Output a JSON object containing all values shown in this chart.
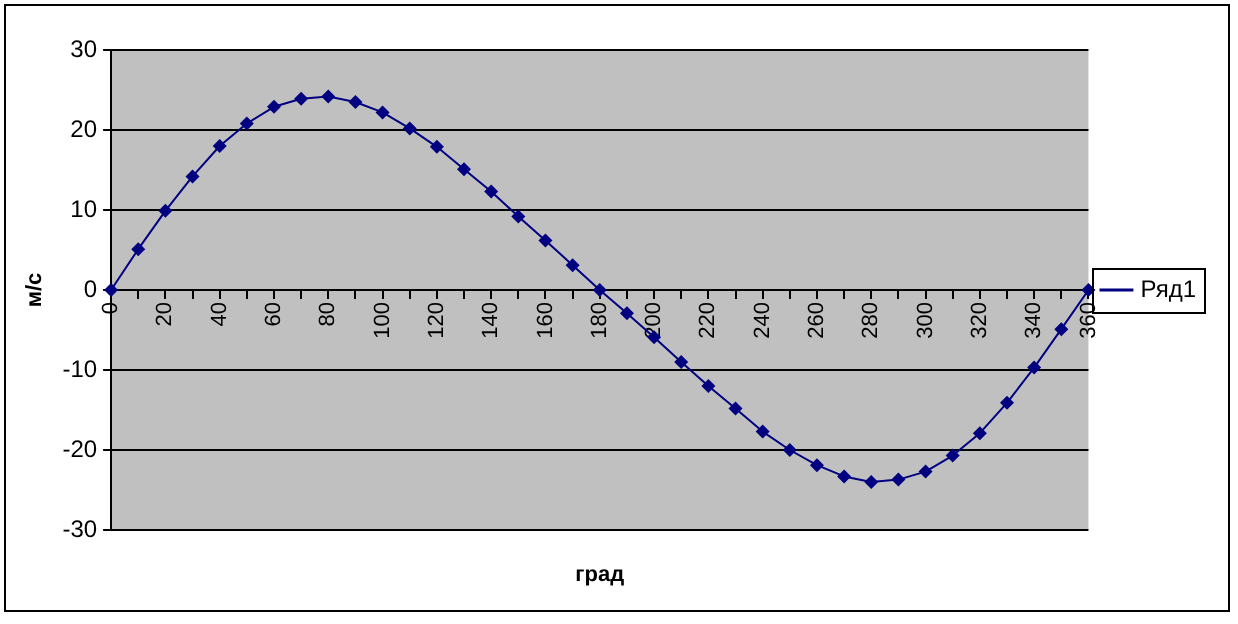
{
  "chart_data": {
    "type": "line",
    "xlabel": "град",
    "ylabel": "м/с",
    "categories": [
      "0",
      null,
      "20",
      null,
      "40",
      null,
      "60",
      null,
      "80",
      null,
      "100",
      null,
      "120",
      null,
      "140",
      null,
      "160",
      null,
      "180",
      null,
      "200",
      null,
      "220",
      null,
      "240",
      null,
      "260",
      null,
      "280",
      null,
      "300",
      null,
      "320",
      null,
      "340",
      null,
      "360"
    ],
    "series": [
      {
        "name": "Ряд1",
        "color": "#000080",
        "values": [
          0,
          5.1,
          9.9,
          14.2,
          18,
          20.8,
          22.9,
          23.9,
          24.2,
          23.5,
          22.2,
          20.2,
          17.9,
          15.1,
          12.3,
          9.2,
          6.2,
          3.1,
          0,
          -2.9,
          -5.9,
          -9,
          -12,
          -14.8,
          -17.7,
          -20,
          -21.9,
          -23.3,
          -24,
          -23.7,
          -22.7,
          -20.7,
          -17.9,
          -14.1,
          -9.7,
          -4.9,
          0
        ]
      }
    ],
    "ylim": [
      -30,
      30
    ],
    "yticks": [
      -30,
      -20,
      -10,
      0,
      10,
      20,
      30
    ],
    "grid": "y",
    "legend": "right",
    "marker": "diamond",
    "line_style": "solid"
  }
}
